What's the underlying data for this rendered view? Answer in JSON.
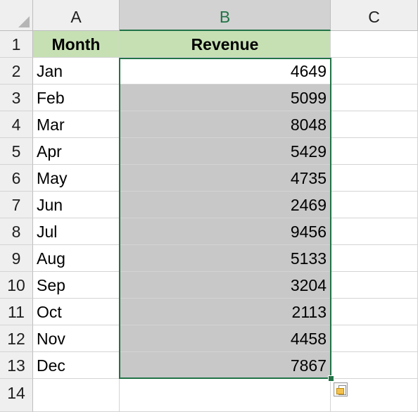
{
  "columns": {
    "corner": "",
    "a": "A",
    "b": "B",
    "c": "C"
  },
  "header_row": {
    "row_num": "1",
    "month": "Month",
    "revenue": "Revenue"
  },
  "rows": [
    {
      "num": "2",
      "month": "Jan",
      "revenue": "4649"
    },
    {
      "num": "3",
      "month": "Feb",
      "revenue": "5099"
    },
    {
      "num": "4",
      "month": "Mar",
      "revenue": "8048"
    },
    {
      "num": "5",
      "month": "Apr",
      "revenue": "5429"
    },
    {
      "num": "6",
      "month": "May",
      "revenue": "4735"
    },
    {
      "num": "7",
      "month": "Jun",
      "revenue": "2469"
    },
    {
      "num": "8",
      "month": "Jul",
      "revenue": "9456"
    },
    {
      "num": "9",
      "month": "Aug",
      "revenue": "5133"
    },
    {
      "num": "10",
      "month": "Sep",
      "revenue": "3204"
    },
    {
      "num": "11",
      "month": "Oct",
      "revenue": "2113"
    },
    {
      "num": "12",
      "month": "Nov",
      "revenue": "4458"
    },
    {
      "num": "13",
      "month": "Dec",
      "revenue": "7867"
    }
  ],
  "empty_row": {
    "num": "14"
  },
  "colors": {
    "header_fill": "#c6e0b4",
    "selection_fill": "#c8c8c8",
    "accent": "#217346"
  },
  "icons": {
    "quick_analysis": "quick-analysis-icon",
    "select_all": "select-all-triangle-icon"
  }
}
